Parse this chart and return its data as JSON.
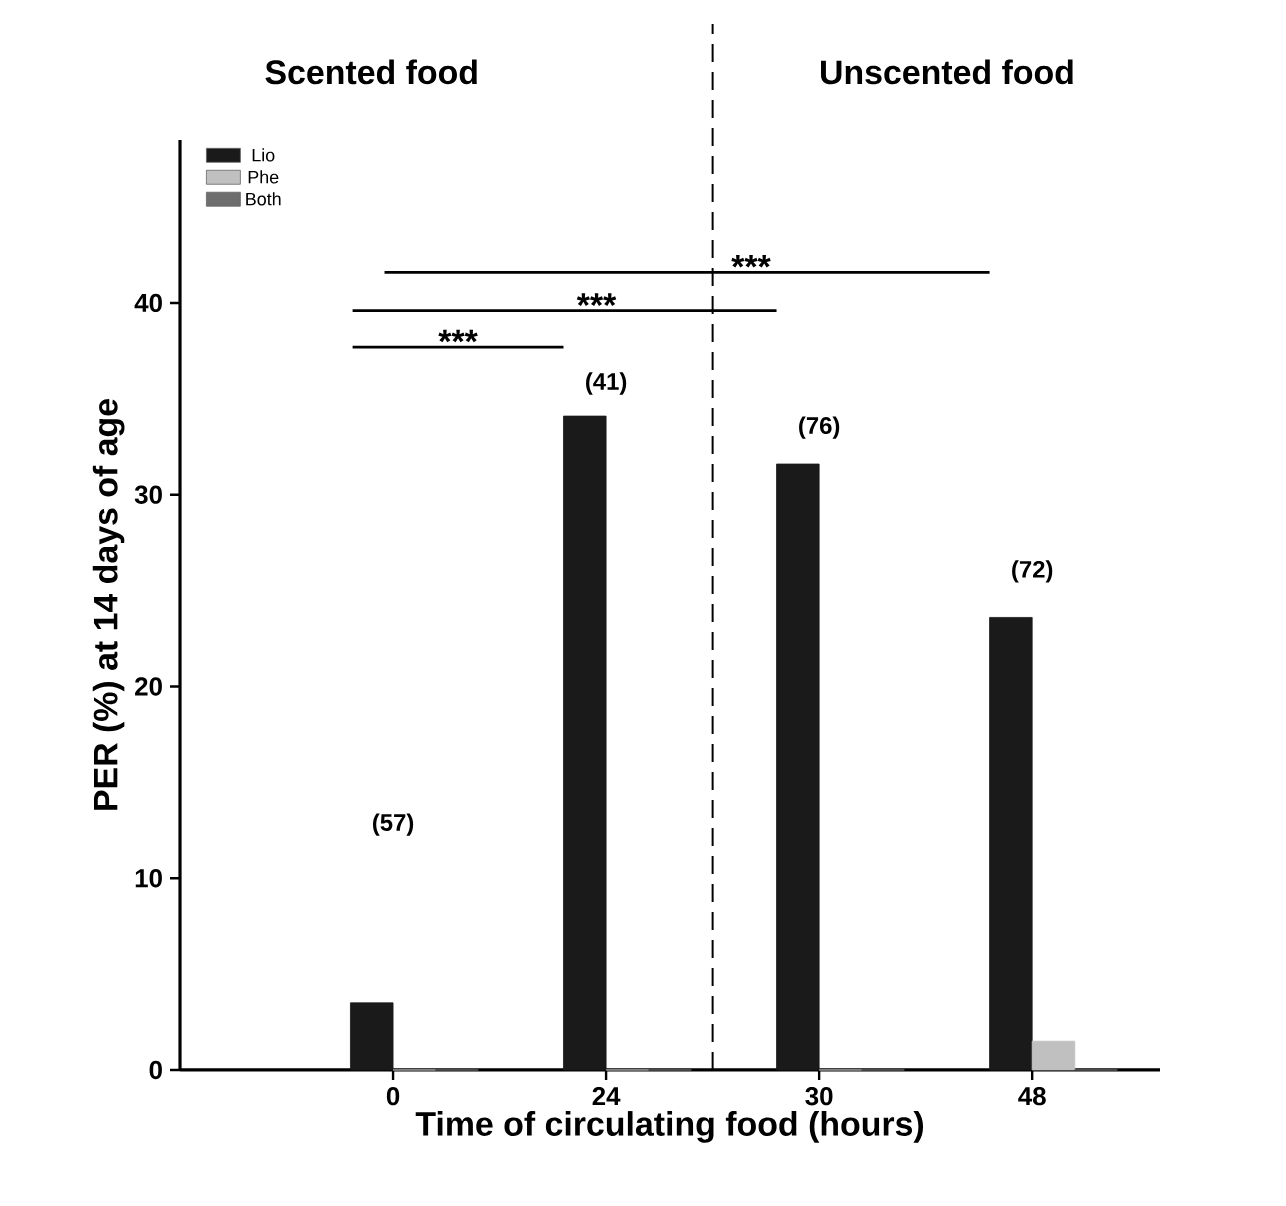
{
  "chart_data": {
    "type": "bar",
    "xlabel": "Time of circulating food (hours)",
    "ylabel": "PER (%) at 14 days of age",
    "categories": [
      "0",
      "24",
      "30",
      "48"
    ],
    "series": [
      {
        "name": "Lio",
        "color": "#1a1a1a",
        "values": [
          3.5,
          34.1,
          31.6,
          23.6
        ]
      },
      {
        "name": "Phe",
        "color": "#c0c0c0",
        "values": [
          0,
          0,
          0,
          1.5
        ]
      },
      {
        "name": "Both",
        "color": "#6e6e6e",
        "values": [
          0,
          0,
          0,
          0
        ]
      }
    ],
    "ylim": [
      0,
      48.5
    ],
    "yticks": [
      0,
      10,
      20,
      30,
      40
    ],
    "legend": "top left",
    "annotations": [
      "Scented food",
      "Unscented food",
      "***",
      "***",
      "***",
      "(57)",
      "(41)",
      "(76)",
      "(72)"
    ]
  }
}
